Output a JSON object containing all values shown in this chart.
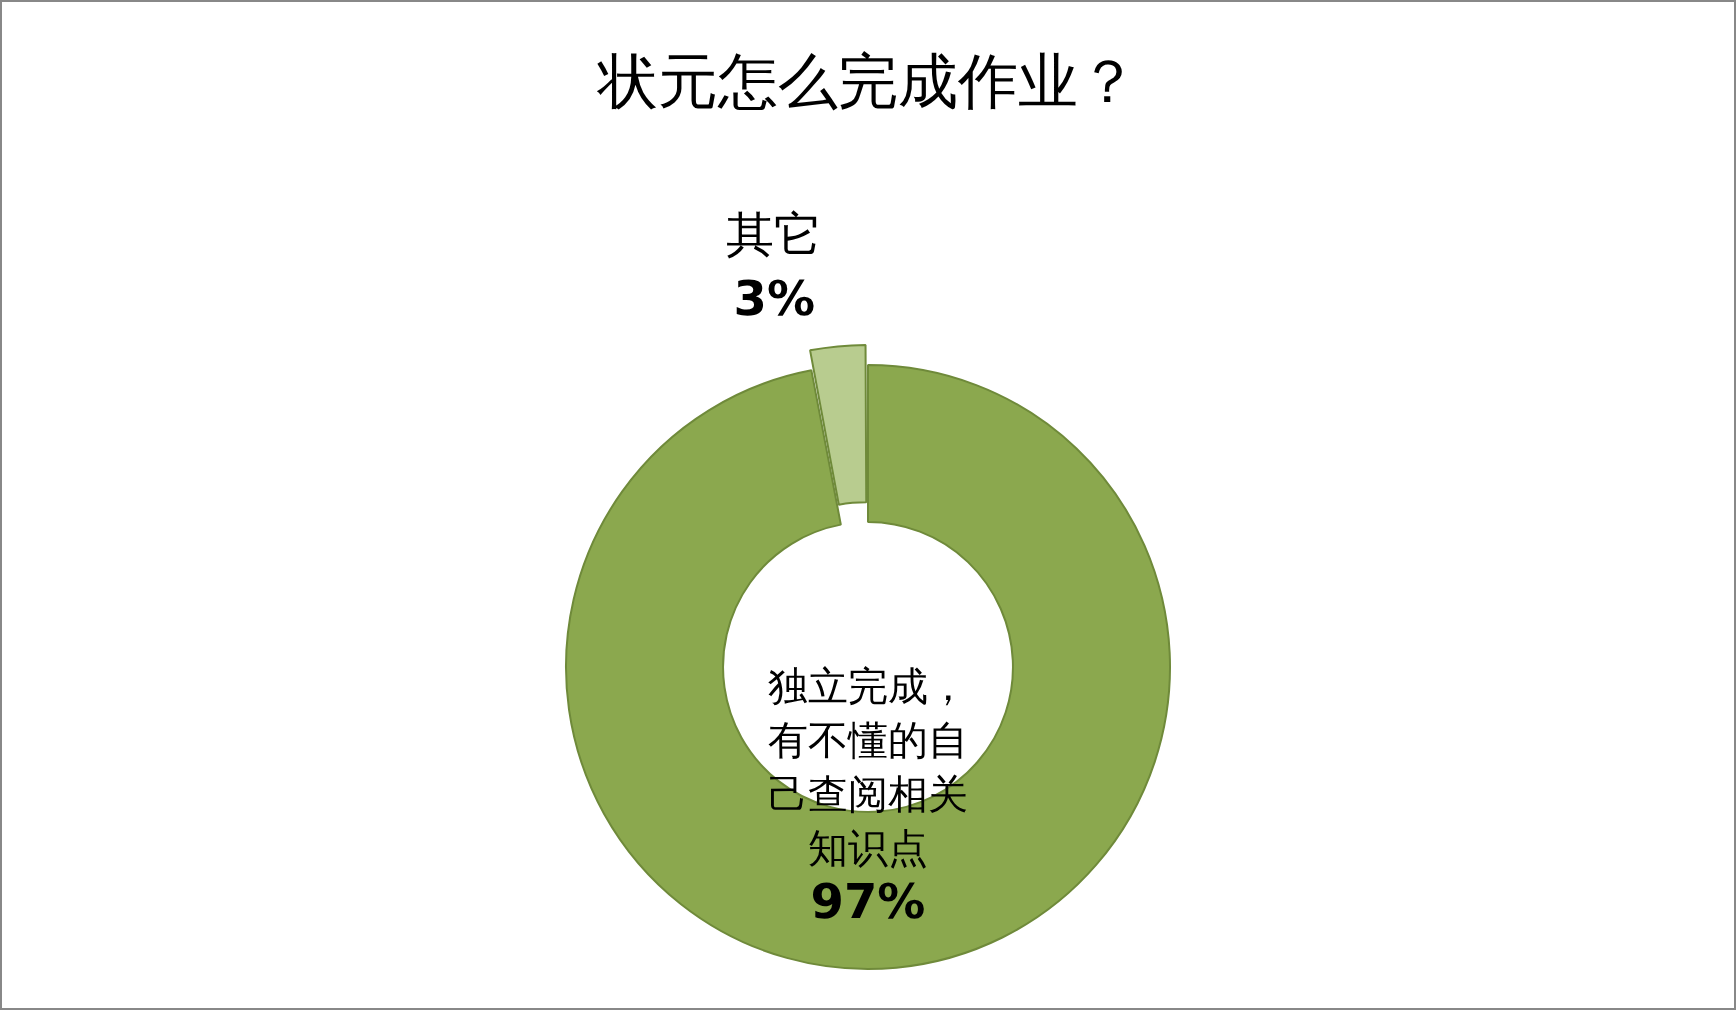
{
  "chart_data": {
    "type": "donut",
    "title": "状元怎么完成作业？",
    "categories": [
      "独立完成，有不懂的自己查阅相关知识点",
      "其它"
    ],
    "values": [
      97,
      3
    ],
    "colors": [
      "#8ba84e",
      "#b8cc8f"
    ],
    "value_labels": [
      "97%",
      "3%"
    ],
    "legend": false
  }
}
